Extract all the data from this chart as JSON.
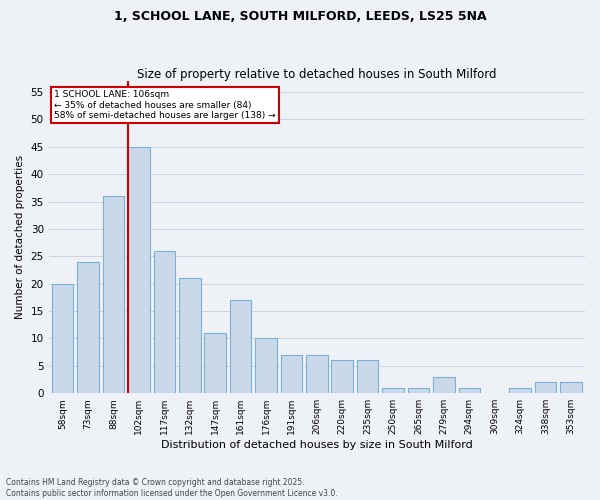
{
  "title1": "1, SCHOOL LANE, SOUTH MILFORD, LEEDS, LS25 5NA",
  "title2": "Size of property relative to detached houses in South Milford",
  "xlabel": "Distribution of detached houses by size in South Milford",
  "ylabel": "Number of detached properties",
  "categories": [
    "58sqm",
    "73sqm",
    "88sqm",
    "102sqm",
    "117sqm",
    "132sqm",
    "147sqm",
    "161sqm",
    "176sqm",
    "191sqm",
    "206sqm",
    "220sqm",
    "235sqm",
    "250sqm",
    "265sqm",
    "279sqm",
    "294sqm",
    "309sqm",
    "324sqm",
    "338sqm",
    "353sqm"
  ],
  "values": [
    20,
    24,
    36,
    45,
    26,
    21,
    11,
    17,
    10,
    7,
    7,
    6,
    6,
    1,
    1,
    3,
    1,
    0,
    1,
    2,
    2
  ],
  "bar_color": "#c9d9ea",
  "bar_edge_color": "#7bafd4",
  "highlight_index": 3,
  "vline_color": "#cc0000",
  "annotation_text": "1 SCHOOL LANE: 106sqm\n← 35% of detached houses are smaller (84)\n58% of semi-detached houses are larger (138) →",
  "annotation_box_color": "#ffffff",
  "annotation_box_edge": "#cc0000",
  "ylim": [
    0,
    57
  ],
  "yticks": [
    0,
    5,
    10,
    15,
    20,
    25,
    30,
    35,
    40,
    45,
    50,
    55
  ],
  "grid_color": "#c8d4e0",
  "background_color": "#eef2f7",
  "footer": "Contains HM Land Registry data © Crown copyright and database right 2025.\nContains public sector information licensed under the Open Government Licence v3.0.",
  "title_fontsize": 9,
  "subtitle_fontsize": 8.5
}
